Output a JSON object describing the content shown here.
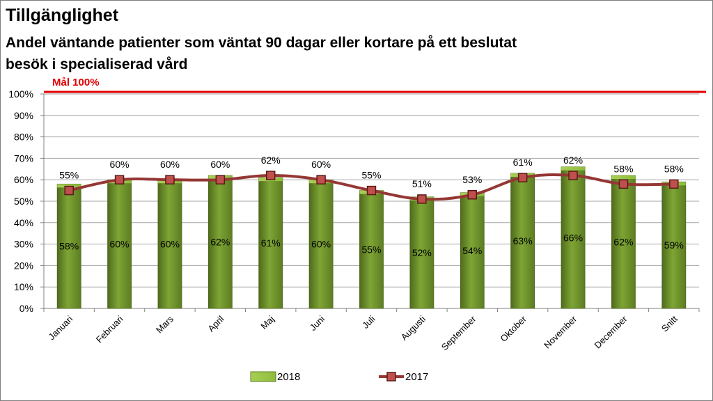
{
  "header": {
    "title": "Tillgänglighet",
    "subtitle": "Andel väntande patienter som väntat 90 dagar eller kortare på ett beslutat besök i specialiserad vård"
  },
  "goal": {
    "label": "Mål 100%",
    "value": 100,
    "color": "#e00000"
  },
  "chart_data": {
    "type": "bar",
    "categories": [
      "Januari",
      "Februari",
      "Mars",
      "April",
      "Maj",
      "Juni",
      "Juli",
      "Augusti",
      "September",
      "Oktober",
      "November",
      "December",
      "Snitt"
    ],
    "series": [
      {
        "name": "2018",
        "type": "bar",
        "color": "#7aa02e",
        "values": [
          58,
          60,
          60,
          62,
          61,
          60,
          55,
          52,
          54,
          63,
          66,
          62,
          59
        ],
        "labels": [
          "58%",
          "60%",
          "60%",
          "62%",
          "61%",
          "60%",
          "55%",
          "52%",
          "54%",
          "63%",
          "66%",
          "62%",
          "59%"
        ]
      },
      {
        "name": "2017",
        "type": "line",
        "color": "#953735",
        "values": [
          55,
          60,
          60,
          60,
          62,
          60,
          55,
          51,
          53,
          61,
          62,
          58,
          58
        ],
        "labels": [
          "55%",
          "60%",
          "60%",
          "60%",
          "62%",
          "60%",
          "55%",
          "51%",
          "53%",
          "61%",
          "62%",
          "58%",
          "58%"
        ]
      }
    ],
    "yticks": [
      "0%",
      "10%",
      "20%",
      "30%",
      "40%",
      "50%",
      "60%",
      "70%",
      "80%",
      "90%",
      "100%"
    ],
    "ylim": [
      0,
      100
    ],
    "grid": true,
    "legend": "bottom"
  }
}
